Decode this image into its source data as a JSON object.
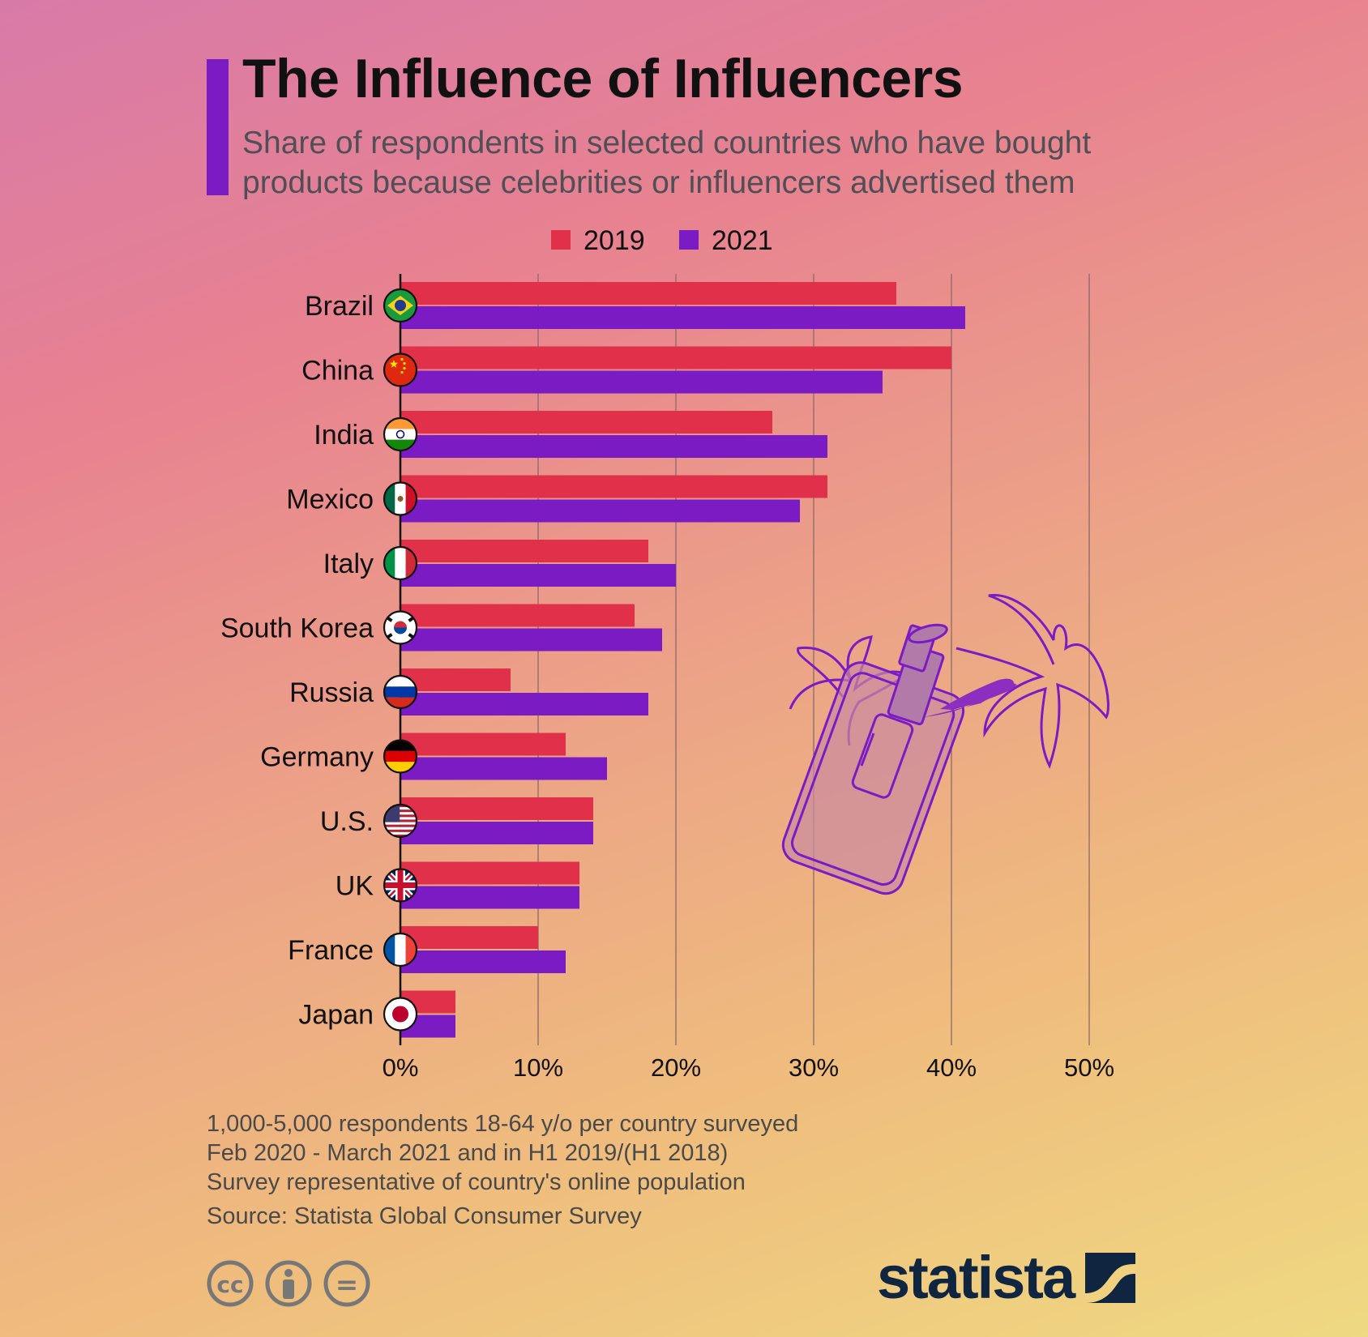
{
  "header": {
    "title": "The Influence of Influencers",
    "subtitle_line1": "Share of respondents in selected countries who have bought",
    "subtitle_line2": "products because celebrities or influencers advertised them"
  },
  "colors": {
    "accent": "#7b1bc4",
    "series_2019": "#e0304a",
    "series_2021": "#7b1bc4",
    "brand": "#0f2540"
  },
  "chart_data": {
    "type": "bar",
    "orientation": "horizontal",
    "categories": [
      "Brazil",
      "China",
      "India",
      "Mexico",
      "Italy",
      "South Korea",
      "Russia",
      "Germany",
      "U.S.",
      "UK",
      "France",
      "Japan"
    ],
    "series": [
      {
        "name": "2019",
        "values": [
          36,
          40,
          27,
          31,
          18,
          17,
          8,
          12,
          14,
          13,
          10,
          4
        ]
      },
      {
        "name": "2021",
        "values": [
          41,
          35,
          31,
          29,
          20,
          19,
          18,
          15,
          14,
          13,
          12,
          4
        ]
      }
    ],
    "xlim": [
      0,
      50
    ],
    "xticks": [
      0,
      10,
      20,
      30,
      40,
      50
    ],
    "tick_format": "%",
    "grid": true,
    "legend_position": "top",
    "flag_icons": [
      "brazil-flag-icon",
      "china-flag-icon",
      "india-flag-icon",
      "mexico-flag-icon",
      "italy-flag-icon",
      "south-korea-flag-icon",
      "russia-flag-icon",
      "germany-flag-icon",
      "us-flag-icon",
      "uk-flag-icon",
      "france-flag-icon",
      "japan-flag-icon"
    ]
  },
  "footer": {
    "note_line1": "1,000-5,000 respondents 18-64 y/o per country surveyed",
    "note_line2": "Feb 2020 - March 2021 and in H1 2019/(H1 2018)",
    "note_line3": "Survey representative of country's online population",
    "source": "Source: Statista Global Consumer Survey",
    "logo_text": "statista",
    "license_icons": [
      "creative-commons-icon",
      "attribution-icon",
      "no-derivatives-icon"
    ],
    "license_labels": [
      "cc",
      "="
    ]
  },
  "illustration": {
    "name": "influencer-phone-illustration",
    "icons": [
      "phone-icon",
      "lipstick-icon",
      "palm-tree-icon"
    ]
  }
}
